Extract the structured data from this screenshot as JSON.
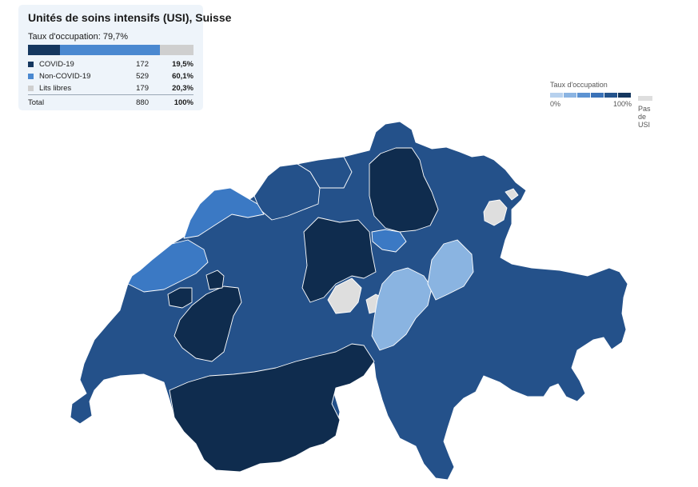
{
  "summary": {
    "title": "Unités de soins intensifs (USI), Suisse",
    "occupancy_label": "Taux d'occupation: 79,7%",
    "occupancy": 79.7,
    "rows": [
      {
        "label": "COVID-19",
        "count": "172",
        "pct": "19,5%",
        "share": 19.5,
        "color": "#15375f"
      },
      {
        "label": "Non-COVID-19",
        "count": "529",
        "pct": "60,1%",
        "share": 60.1,
        "color": "#4a88d0"
      },
      {
        "label": "Lits libres",
        "count": "179",
        "pct": "20,3%",
        "share": 20.3,
        "color": "#cfcfcf"
      }
    ],
    "total": {
      "label": "Total",
      "count": "880",
      "pct": "100%"
    }
  },
  "legend": {
    "title": "Taux d'occupation",
    "min_label": "0%",
    "max_label": "100%",
    "ramp_colors": [
      "#b7d1ee",
      "#8bb4e2",
      "#5d93d2",
      "#3a72b8",
      "#24538c",
      "#15375f"
    ],
    "no_data_label": "Pas de USI",
    "no_data_color": "#dedede"
  },
  "map_colors": {
    "very_high": "#0f2c4e",
    "high": "#24518a",
    "medium": "#3b79c4",
    "low": "#8ab4e1",
    "no_data": "#dedede"
  }
}
